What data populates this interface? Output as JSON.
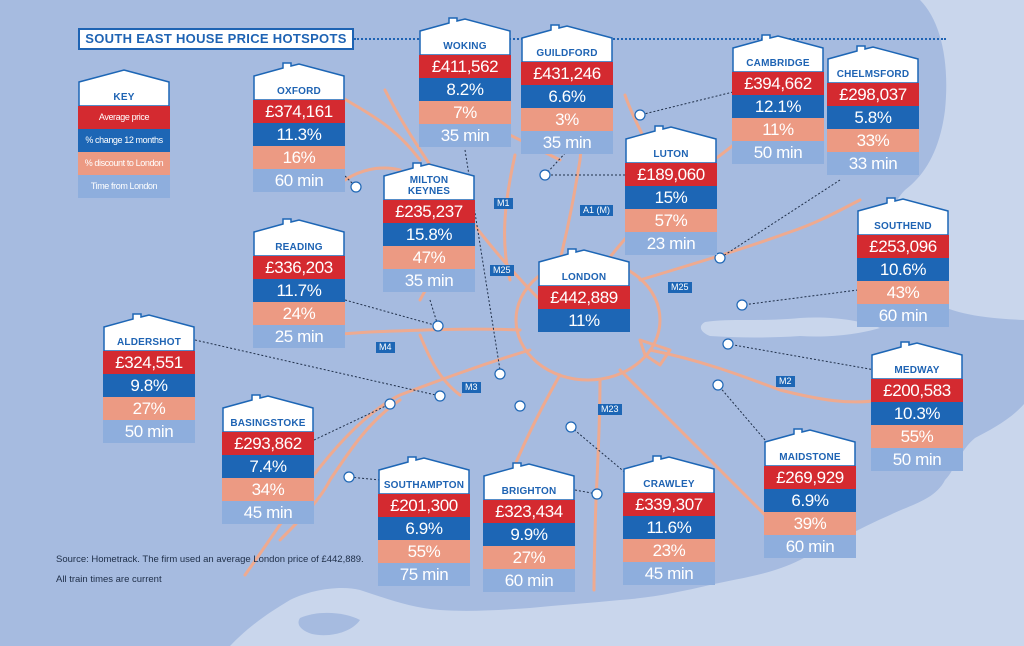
{
  "title": "SOUTH EAST HOUSE PRICE HOTSPOTS",
  "key": {
    "title": "KEY",
    "items": [
      "Average price",
      "% change 12 months",
      "% discount to London",
      "Time from London"
    ]
  },
  "source": {
    "line1": "Source: Hometrack. The firm used an average London price of £442,889.",
    "line2": "All train times are current"
  },
  "roads": [
    "M1",
    "A1 (M)",
    "M25",
    "M25",
    "M4",
    "M3",
    "M23",
    "M2"
  ],
  "colors": {
    "price": "#d42a30",
    "change": "#1d66b5",
    "discount": "#ec9a83",
    "time": "#8eaedd",
    "title_blue": "#1e63b3",
    "sea": "#c9d6ec",
    "land": "#a6bbe0",
    "road": "#eeaa90"
  },
  "towns": [
    {
      "name": "OXFORD",
      "price": "£374,161",
      "change": "11.3%",
      "discount": "16%",
      "time": "60 min"
    },
    {
      "name": "WOKING",
      "price": "£411,562",
      "change": "8.2%",
      "discount": "7%",
      "time": "35 min"
    },
    {
      "name": "GUILDFORD",
      "price": "£431,246",
      "change": "6.6%",
      "discount": "3%",
      "time": "35 min"
    },
    {
      "name": "CAMBRIDGE",
      "price": "£394,662",
      "change": "12.1%",
      "discount": "11%",
      "time": "50 min"
    },
    {
      "name": "CHELMSFORD",
      "price": "£298,037",
      "change": "5.8%",
      "discount": "33%",
      "time": "33 min"
    },
    {
      "name": "MILTON KEYNES",
      "price": "£235,237",
      "change": "15.8%",
      "discount": "47%",
      "time": "35 min"
    },
    {
      "name": "LUTON",
      "price": "£189,060",
      "change": "15%",
      "discount": "57%",
      "time": "23 min"
    },
    {
      "name": "SOUTHEND",
      "price": "£253,096",
      "change": "10.6%",
      "discount": "43%",
      "time": "60 min"
    },
    {
      "name": "READING",
      "price": "£336,203",
      "change": "11.7%",
      "discount": "24%",
      "time": "25 min"
    },
    {
      "name": "LONDON",
      "price": "£442,889",
      "change": "11%"
    },
    {
      "name": "ALDERSHOT",
      "price": "£324,551",
      "change": "9.8%",
      "discount": "27%",
      "time": "50 min"
    },
    {
      "name": "MEDWAY",
      "price": "£200,583",
      "change": "10.3%",
      "discount": "55%",
      "time": "50 min"
    },
    {
      "name": "BASINGSTOKE",
      "price": "£293,862",
      "change": "7.4%",
      "discount": "34%",
      "time": "45 min"
    },
    {
      "name": "MAIDSTONE",
      "price": "£269,929",
      "change": "6.9%",
      "discount": "39%",
      "time": "60 min"
    },
    {
      "name": "SOUTHAMPTON",
      "price": "£201,300",
      "change": "6.9%",
      "discount": "55%",
      "time": "75 min"
    },
    {
      "name": "BRIGHTON",
      "price": "£323,434",
      "change": "9.9%",
      "discount": "27%",
      "time": "60 min"
    },
    {
      "name": "CRAWLEY",
      "price": "£339,307",
      "change": "11.6%",
      "discount": "23%",
      "time": "45 min"
    }
  ]
}
